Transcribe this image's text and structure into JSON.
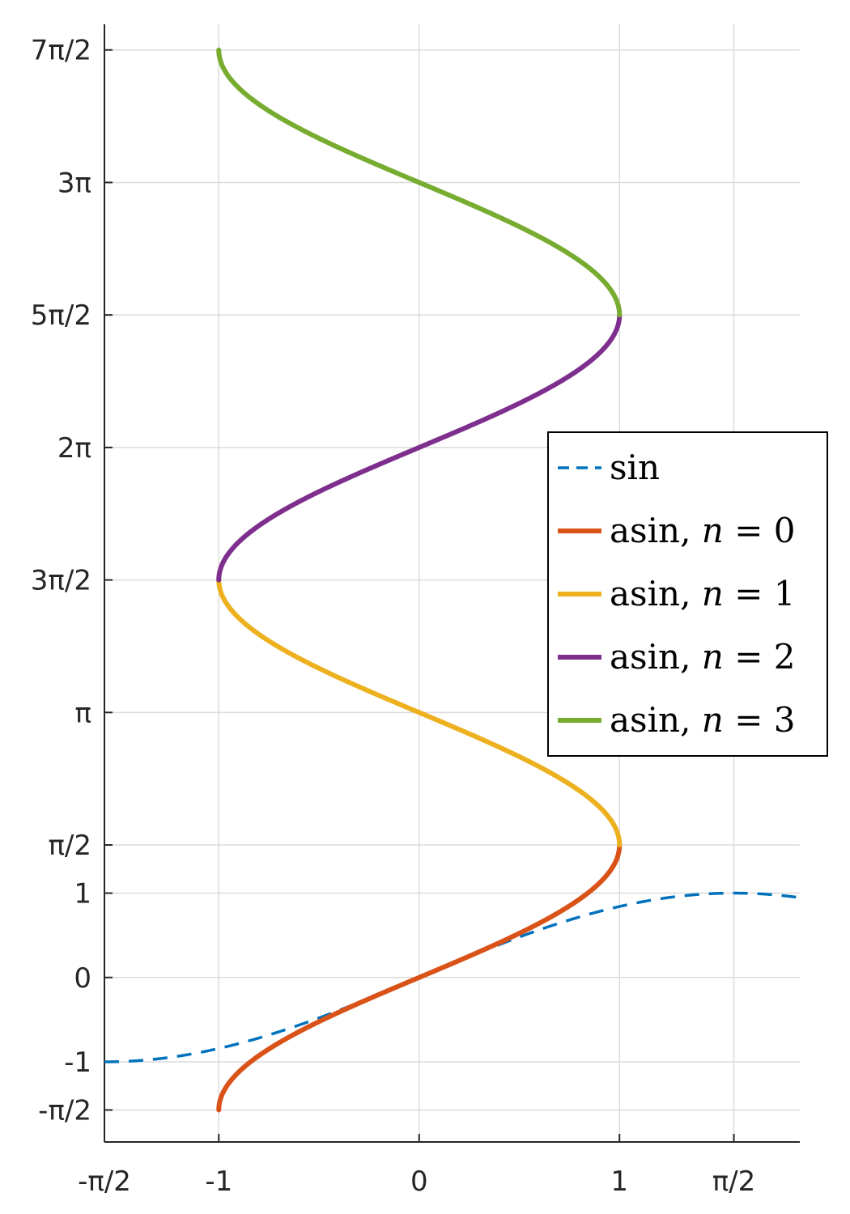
{
  "chart_data": {
    "type": "line",
    "title": "",
    "xlabel": "",
    "ylabel": "",
    "xlim": [
      -1.5707963,
      1.9
    ],
    "ylim": [
      -1.95,
      11.3
    ],
    "grid": true,
    "legend_position": "right",
    "x_ticks": [
      {
        "value": -1.5707963,
        "label": "-π/2"
      },
      {
        "value": -1,
        "label": "-1"
      },
      {
        "value": 0,
        "label": "0"
      },
      {
        "value": 1,
        "label": "1"
      },
      {
        "value": 1.5707963,
        "label": "π/2"
      }
    ],
    "y_ticks": [
      {
        "value": -1.5707963,
        "label": "-π/2"
      },
      {
        "value": -1,
        "label": "-1"
      },
      {
        "value": 0,
        "label": "0"
      },
      {
        "value": 1,
        "label": "1"
      },
      {
        "value": 1.5707963,
        "label": "π/2"
      },
      {
        "value": 3.1415927,
        "label": "π"
      },
      {
        "value": 4.712389,
        "label": "3π/2"
      },
      {
        "value": 6.2831853,
        "label": "2π"
      },
      {
        "value": 7.8539816,
        "label": "5π/2"
      },
      {
        "value": 9.424778,
        "label": "3π"
      },
      {
        "value": 10.995574,
        "label": "7π/2"
      }
    ],
    "series": [
      {
        "name": "sin",
        "label": "sin",
        "function": "y = sin(x)",
        "x_range": [
          -1.5707963,
          1.9
        ],
        "color": "#0072BD",
        "dashed": true
      },
      {
        "name": "asin, n = 0",
        "label": "asin, ",
        "n_label": "n",
        "eq_label": " = 0",
        "function": "y = asin(x)",
        "x_range": [
          -1,
          1
        ],
        "color": "#D95319",
        "dashed": false
      },
      {
        "name": "asin, n = 1",
        "label": "asin, ",
        "n_label": "n",
        "eq_label": " = 1",
        "function": "y = π - asin(x)",
        "x_range": [
          -1,
          1
        ],
        "color": "#EDB120",
        "dashed": false
      },
      {
        "name": "asin, n = 2",
        "label": "asin, ",
        "n_label": "n",
        "eq_label": " = 2",
        "function": "y = 2π + asin(x)",
        "x_range": [
          -1,
          1
        ],
        "color": "#7E2F8E",
        "dashed": false
      },
      {
        "name": "asin, n = 3",
        "label": "asin, ",
        "n_label": "n",
        "eq_label": " = 3",
        "function": "y = 3π - asin(x)",
        "x_range": [
          -1,
          1
        ],
        "color": "#77AC30",
        "dashed": false
      }
    ]
  }
}
